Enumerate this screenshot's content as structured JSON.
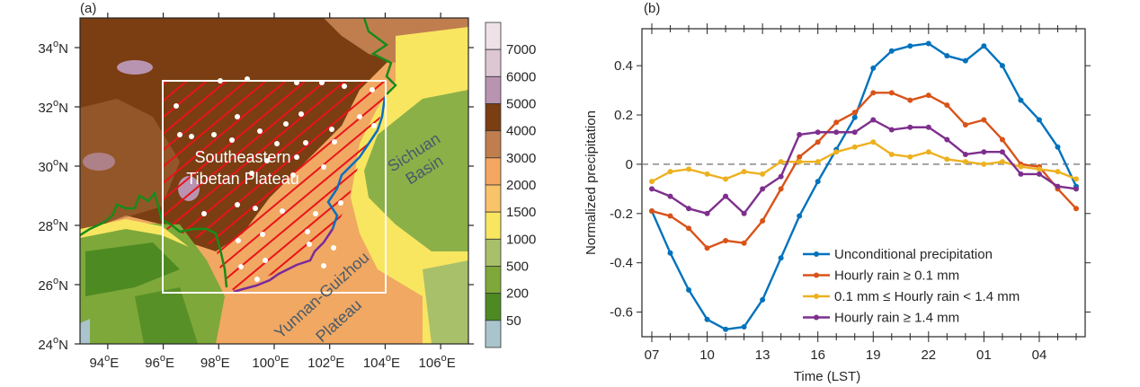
{
  "panel_a": {
    "label": "(a)",
    "title": "",
    "lon_ticks": [
      "94",
      "96",
      "98",
      "100",
      "102",
      "104",
      "106"
    ],
    "lon_suffix": "E",
    "lat_ticks": [
      "24",
      "26",
      "28",
      "30",
      "32",
      "34"
    ],
    "lat_suffix": "N",
    "degree_symbol": "o",
    "lon_range": [
      93,
      107
    ],
    "lat_range": [
      24,
      35
    ],
    "study_box": {
      "lon": [
        96,
        104
      ],
      "lat": [
        26,
        33
      ]
    },
    "regions": [
      {
        "name": "Southeastern",
        "line": 1,
        "color": "#ffffff"
      },
      {
        "name": "Tibetan Plateau",
        "line": 2,
        "color": "#ffffff"
      },
      {
        "name": "Sichuan",
        "line": 1,
        "color": "#4a5a6a"
      },
      {
        "name": "Basin",
        "line": 2,
        "color": "#4a5a6a"
      },
      {
        "name": "Yunnan-Guizhou",
        "line": 1,
        "color": "#4a5a6a"
      },
      {
        "name": "Plateau",
        "line": 2,
        "color": "#4a5a6a"
      }
    ],
    "boundary_colors": {
      "green": "#1a8a1a",
      "blue": "#0a6fc0",
      "purple": "#7a2a9a",
      "hatch": "#e8141a",
      "box": "#ffffff",
      "stations": "#ffffff"
    },
    "colorbar": {
      "labels": [
        "7000",
        "6000",
        "5000",
        "4000",
        "3000",
        "2000",
        "1500",
        "1000",
        "500",
        "200",
        "50"
      ],
      "colors": [
        "#eee2e8",
        "#dcc7d2",
        "#b994b0",
        "#7a3e12",
        "#c07e4e",
        "#f5a762",
        "#f9c36a",
        "#f8e660",
        "#a8c06a",
        "#7ea83a",
        "#4e8a22",
        "#a9c4cc"
      ]
    }
  },
  "chart_data": {
    "type": "line",
    "panel_label": "(b)",
    "title": "",
    "xlabel": "Time (LST)",
    "ylabel": "Normalized precipitation",
    "x": [
      "07",
      "08",
      "09",
      "10",
      "11",
      "12",
      "13",
      "14",
      "15",
      "16",
      "17",
      "18",
      "19",
      "20",
      "21",
      "22",
      "23",
      "00",
      "01",
      "02",
      "03",
      "04",
      "05",
      "06"
    ],
    "xtick_labels": [
      "07",
      "10",
      "13",
      "16",
      "19",
      "22",
      "01",
      "04"
    ],
    "yticks": [
      -0.6,
      -0.4,
      -0.2,
      0,
      0.2,
      0.4
    ],
    "ytick_labels": [
      "-0.6",
      "-0.4",
      "-0.2",
      "0",
      "0.2",
      "0.4"
    ],
    "ylim": [
      -0.7,
      0.55
    ],
    "grid": false,
    "zero_line": {
      "style": "dashed",
      "color": "#888888"
    },
    "legend_position": "bottom-right",
    "series": [
      {
        "name": "Unconditional precipitation",
        "color": "#0072bd",
        "values": [
          -0.19,
          -0.36,
          -0.51,
          -0.63,
          -0.67,
          -0.66,
          -0.55,
          -0.38,
          -0.21,
          -0.07,
          0.06,
          0.19,
          0.39,
          0.46,
          0.48,
          0.49,
          0.44,
          0.42,
          0.48,
          0.4,
          0.26,
          0.18,
          0.07,
          -0.09
        ]
      },
      {
        "name": "Hourly rain ≥ 0.1 mm",
        "color": "#d95319",
        "values": [
          -0.19,
          -0.21,
          -0.26,
          -0.34,
          -0.31,
          -0.32,
          -0.23,
          -0.1,
          0.03,
          0.09,
          0.17,
          0.21,
          0.29,
          0.29,
          0.26,
          0.28,
          0.24,
          0.16,
          0.18,
          0.1,
          0.0,
          -0.01,
          -0.1,
          -0.18
        ]
      },
      {
        "name": "0.1 mm ≤ Hourly rain < 1.4 mm",
        "color": "#edb120",
        "values": [
          -0.07,
          -0.03,
          -0.02,
          -0.04,
          -0.06,
          -0.03,
          -0.04,
          0.01,
          0.01,
          0.01,
          0.05,
          0.07,
          0.09,
          0.04,
          0.03,
          0.05,
          0.02,
          0.01,
          0.0,
          0.01,
          -0.01,
          -0.02,
          -0.03,
          -0.06
        ]
      },
      {
        "name": "Hourly rain ≥ 1.4 mm",
        "color": "#7e2f8e",
        "values": [
          -0.1,
          -0.13,
          -0.18,
          -0.2,
          -0.13,
          -0.2,
          -0.1,
          -0.05,
          0.12,
          0.13,
          0.13,
          0.13,
          0.18,
          0.14,
          0.15,
          0.15,
          0.1,
          0.04,
          0.05,
          0.05,
          -0.04,
          -0.04,
          -0.09,
          -0.1
        ]
      }
    ]
  }
}
